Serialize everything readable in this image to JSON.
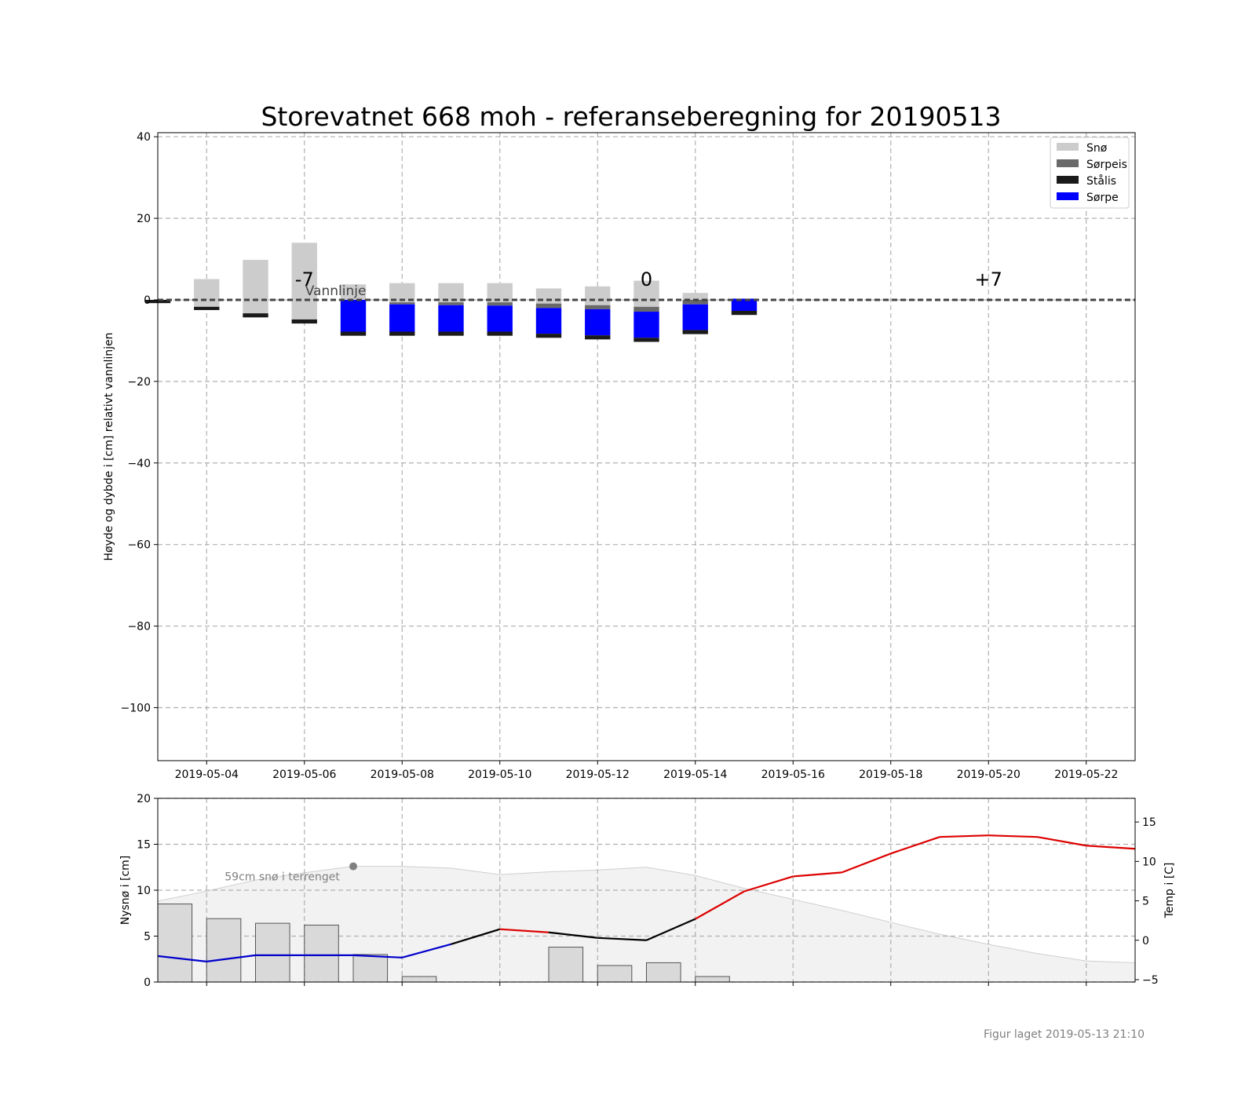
{
  "figure": {
    "title": "Storevatnet 668 moh - referanseberegning for 20190513",
    "footer": "Figur laget 2019-05-13 21:10"
  },
  "chart_data": [
    {
      "type": "bar",
      "stacked": true,
      "ylabel": "Høyde og dybde i [cm] relativt vannlinjen",
      "ylim": [
        -113,
        41
      ],
      "xlim": [
        "2019-05-03",
        "2019-05-23"
      ],
      "yticks": [
        40,
        20,
        0,
        -20,
        -40,
        -60,
        -80,
        -100
      ],
      "ytick_labels": [
        "40",
        "20",
        "0",
        "−20",
        "−40",
        "−60",
        "−80",
        "−100"
      ],
      "xticks": [
        "2019-05-04",
        "2019-05-06",
        "2019-05-08",
        "2019-05-10",
        "2019-05-12",
        "2019-05-14",
        "2019-05-16",
        "2019-05-18",
        "2019-05-20",
        "2019-05-22"
      ],
      "grid": true,
      "legend_position": "top-right",
      "legend": [
        {
          "name": "Snø",
          "color": "#cccccc"
        },
        {
          "name": "Sørpeis",
          "color": "#696969"
        },
        {
          "name": "Stålis",
          "color": "#1a1a1a"
        },
        {
          "name": "Sørpe",
          "color": "#0000ff"
        }
      ],
      "waterline": {
        "value": 0,
        "label": "Vannlinje"
      },
      "day_markers": [
        {
          "label": "-7",
          "date": "2019-05-06",
          "value": 5
        },
        {
          "label": "0",
          "date": "2019-05-13",
          "value": 5
        },
        {
          "label": "+7",
          "date": "2019-05-20",
          "value": 5
        }
      ],
      "dates": [
        "2019-05-03",
        "2019-05-04",
        "2019-05-05",
        "2019-05-06",
        "2019-05-07",
        "2019-05-08",
        "2019-05-09",
        "2019-05-10",
        "2019-05-11",
        "2019-05-12",
        "2019-05-13",
        "2019-05-14",
        "2019-05-15"
      ],
      "columns": [
        [
          {
            "layer": "Stålis",
            "from": 0,
            "to": -0.8
          }
        ],
        [
          {
            "layer": "Snø",
            "from": 5.1,
            "to": -1.7
          },
          {
            "layer": "Stålis",
            "from": -1.7,
            "to": -2.5
          }
        ],
        [
          {
            "layer": "Snø",
            "from": 9.8,
            "to": -3.3
          },
          {
            "layer": "Stålis",
            "from": -3.3,
            "to": -4.3
          }
        ],
        [
          {
            "layer": "Snø",
            "from": 14,
            "to": -4.8
          },
          {
            "layer": "Stålis",
            "from": -4.8,
            "to": -5.8
          }
        ],
        [
          {
            "layer": "Snø",
            "from": 3.8,
            "to": 0
          },
          {
            "layer": "Sørpe",
            "from": 0,
            "to": -7.8
          },
          {
            "layer": "Stålis",
            "from": -7.8,
            "to": -8.8
          }
        ],
        [
          {
            "layer": "Snø",
            "from": 4.1,
            "to": -0.6
          },
          {
            "layer": "Sørpeis",
            "from": -0.6,
            "to": -1.1
          },
          {
            "layer": "Sørpe",
            "from": -1.1,
            "to": -7.8
          },
          {
            "layer": "Stålis",
            "from": -7.8,
            "to": -8.8
          }
        ],
        [
          {
            "layer": "Snø",
            "from": 4.1,
            "to": -0.6
          },
          {
            "layer": "Sørpeis",
            "from": -0.6,
            "to": -1.3
          },
          {
            "layer": "Sørpe",
            "from": -1.3,
            "to": -7.8
          },
          {
            "layer": "Stålis",
            "from": -7.8,
            "to": -8.8
          }
        ],
        [
          {
            "layer": "Snø",
            "from": 4.1,
            "to": -0.6
          },
          {
            "layer": "Sørpeis",
            "from": -0.6,
            "to": -1.4
          },
          {
            "layer": "Sørpe",
            "from": -1.4,
            "to": -7.8
          },
          {
            "layer": "Stålis",
            "from": -7.8,
            "to": -8.8
          }
        ],
        [
          {
            "layer": "Snø",
            "from": 2.8,
            "to": -0.9
          },
          {
            "layer": "Sørpeis",
            "from": -0.9,
            "to": -2
          },
          {
            "layer": "Sørpe",
            "from": -2,
            "to": -8.3
          },
          {
            "layer": "Stålis",
            "from": -8.3,
            "to": -9.3
          }
        ],
        [
          {
            "layer": "Snø",
            "from": 3.3,
            "to": -1.3
          },
          {
            "layer": "Sørpeis",
            "from": -1.3,
            "to": -2.3
          },
          {
            "layer": "Sørpe",
            "from": -2.3,
            "to": -8.7
          },
          {
            "layer": "Stålis",
            "from": -8.7,
            "to": -9.7
          }
        ],
        [
          {
            "layer": "Snø",
            "from": 4.7,
            "to": -1.7
          },
          {
            "layer": "Sørpeis",
            "from": -1.7,
            "to": -2.9
          },
          {
            "layer": "Sørpe",
            "from": -2.9,
            "to": -9.3
          },
          {
            "layer": "Stålis",
            "from": -9.3,
            "to": -10.3
          }
        ],
        [
          {
            "layer": "Snø",
            "from": 1.7,
            "to": 0
          },
          {
            "layer": "Sørpeis",
            "from": 0,
            "to": -1.1
          },
          {
            "layer": "Sørpe",
            "from": -1.1,
            "to": -7.4
          },
          {
            "layer": "Stålis",
            "from": -7.4,
            "to": -8.4
          }
        ],
        [
          {
            "layer": "Sørpe",
            "from": 0.3,
            "to": -2.7
          },
          {
            "layer": "Stålis",
            "from": -2.7,
            "to": -3.7
          }
        ]
      ]
    },
    {
      "type": "bar",
      "ylabel": "Nysnø i [cm]",
      "ylim": [
        0,
        20
      ],
      "xlim": [
        "2019-05-03",
        "2019-05-23"
      ],
      "yticks": [
        0,
        5,
        10,
        15,
        20
      ],
      "grid": true,
      "new_snow": {
        "dates": [
          "2019-05-03",
          "2019-05-04",
          "2019-05-05",
          "2019-05-06",
          "2019-05-07",
          "2019-05-08",
          "2019-05-09",
          "2019-05-10",
          "2019-05-11",
          "2019-05-12",
          "2019-05-13",
          "2019-05-14"
        ],
        "values": [
          8.5,
          6.9,
          6.4,
          6.2,
          3,
          0.6,
          0,
          0,
          3.8,
          1.8,
          2.1,
          0.6
        ]
      },
      "terrain_snow": {
        "dates": [
          "2019-05-03",
          "2019-05-04",
          "2019-05-05",
          "2019-05-06",
          "2019-05-07",
          "2019-05-08",
          "2019-05-09",
          "2019-05-10",
          "2019-05-11",
          "2019-05-12",
          "2019-05-13",
          "2019-05-14",
          "2019-05-15",
          "2019-05-16",
          "2019-05-17",
          "2019-05-18",
          "2019-05-19",
          "2019-05-20",
          "2019-05-21",
          "2019-05-22",
          "2019-05-23"
        ],
        "values": [
          8.8,
          9.9,
          11.1,
          11.9,
          12.6,
          12.6,
          12.4,
          11.7,
          12,
          12.2,
          12.5,
          11.6,
          10.2,
          9,
          7.8,
          6.5,
          5.2,
          4.1,
          3.1,
          2.3,
          2.1
        ],
        "annotation": "59cm snø i terrenget",
        "marker_date": "2019-05-07",
        "marker_value": 12.6
      },
      "temperature": {
        "ylabel": "Temp i [C]",
        "ylim": [
          -5.3,
          18
        ],
        "yticks": [
          -5,
          0,
          5,
          10,
          15
        ],
        "ytick_labels": [
          "−5",
          "0",
          "5",
          "10",
          "15"
        ],
        "dates": [
          "2019-05-03",
          "2019-05-04",
          "2019-05-05",
          "2019-05-06",
          "2019-05-07",
          "2019-05-08",
          "2019-05-09",
          "2019-05-10",
          "2019-05-11",
          "2019-05-12",
          "2019-05-13",
          "2019-05-14",
          "2019-05-15",
          "2019-05-16",
          "2019-05-17",
          "2019-05-18",
          "2019-05-19",
          "2019-05-20",
          "2019-05-21",
          "2019-05-22",
          "2019-05-23"
        ],
        "values": [
          -2,
          -2.7,
          -1.9,
          -1.9,
          -1.9,
          -2.2,
          -0.5,
          1.4,
          1,
          0.3,
          0,
          2.7,
          6.2,
          8.1,
          8.6,
          11,
          13.1,
          13.3,
          13.1,
          12,
          11.6
        ],
        "color_cold": "#0000cc",
        "color_neutral": "#000000",
        "color_warm": "#dd0000"
      }
    }
  ]
}
